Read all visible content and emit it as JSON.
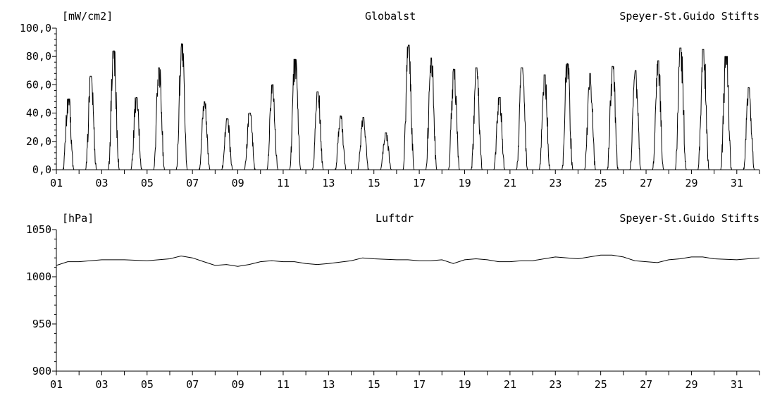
{
  "chart_data": [
    {
      "type": "line",
      "unit_label": "[mW/cm2]",
      "parameter": "Globalst",
      "station": "Speyer-St.Guido Stifts",
      "ylim": [
        0,
        100
      ],
      "y_ticks": [
        "0,0",
        "20,0",
        "40,0",
        "60,0",
        "80,0",
        "100,0"
      ],
      "y_tick_values": [
        0,
        20,
        40,
        60,
        80,
        100
      ],
      "xlim": [
        1,
        32
      ],
      "x_ticks": [
        "01",
        "03",
        "05",
        "07",
        "09",
        "11",
        "13",
        "15",
        "17",
        "19",
        "21",
        "23",
        "25",
        "27",
        "29",
        "31"
      ],
      "x_tick_values": [
        1,
        3,
        5,
        7,
        9,
        11,
        13,
        15,
        17,
        19,
        21,
        23,
        25,
        27,
        29,
        31
      ],
      "grid": false,
      "series": [
        {
          "daily_peaks": [
            50,
            66,
            84,
            51,
            72,
            89,
            48,
            36,
            40,
            60,
            78,
            55,
            38,
            37,
            26,
            88,
            79,
            71,
            72,
            51,
            72,
            67,
            75,
            68,
            73,
            70,
            77,
            86,
            85,
            80,
            58
          ],
          "day_span": [
            0.28,
            0.78
          ]
        }
      ]
    },
    {
      "type": "line",
      "unit_label": "[hPa]",
      "parameter": "Luftdr",
      "station": "Speyer-St.Guido Stifts",
      "ylim": [
        900,
        1050
      ],
      "y_ticks": [
        "900",
        "950",
        "1000",
        "1050"
      ],
      "y_tick_values": [
        900,
        950,
        1000,
        1050
      ],
      "xlim": [
        1,
        32
      ],
      "x_ticks": [
        "01",
        "03",
        "05",
        "07",
        "09",
        "11",
        "13",
        "15",
        "17",
        "19",
        "21",
        "23",
        "25",
        "27",
        "29",
        "31"
      ],
      "x_tick_values": [
        1,
        3,
        5,
        7,
        9,
        11,
        13,
        15,
        17,
        19,
        21,
        23,
        25,
        27,
        29,
        31
      ],
      "grid": false,
      "series": [
        {
          "x": [
            1,
            1.5,
            2,
            3,
            4,
            5,
            5.5,
            6,
            6.5,
            7,
            7.5,
            8,
            8.5,
            9,
            9.5,
            10,
            10.5,
            11,
            11.5,
            12,
            12.5,
            13,
            14,
            14.5,
            15,
            16,
            16.5,
            17,
            17.5,
            18,
            18.5,
            19,
            19.5,
            20,
            20.5,
            21,
            21.5,
            22,
            22.5,
            23,
            24,
            25,
            25.5,
            26,
            26.5,
            27,
            27.5,
            28,
            28.5,
            29,
            29.5,
            30,
            31,
            31.5,
            32
          ],
          "y": [
            1012,
            1016,
            1016,
            1018,
            1018,
            1017,
            1018,
            1019,
            1022,
            1020,
            1016,
            1012,
            1013,
            1011,
            1013,
            1016,
            1017,
            1016,
            1016,
            1014,
            1013,
            1014,
            1017,
            1020,
            1019,
            1018,
            1018,
            1017,
            1017,
            1018,
            1014,
            1018,
            1019,
            1018,
            1016,
            1016,
            1017,
            1017,
            1019,
            1021,
            1019,
            1023,
            1023,
            1021,
            1017,
            1016,
            1015,
            1018,
            1019,
            1021,
            1021,
            1019,
            1018,
            1019,
            1020
          ]
        }
      ]
    }
  ]
}
